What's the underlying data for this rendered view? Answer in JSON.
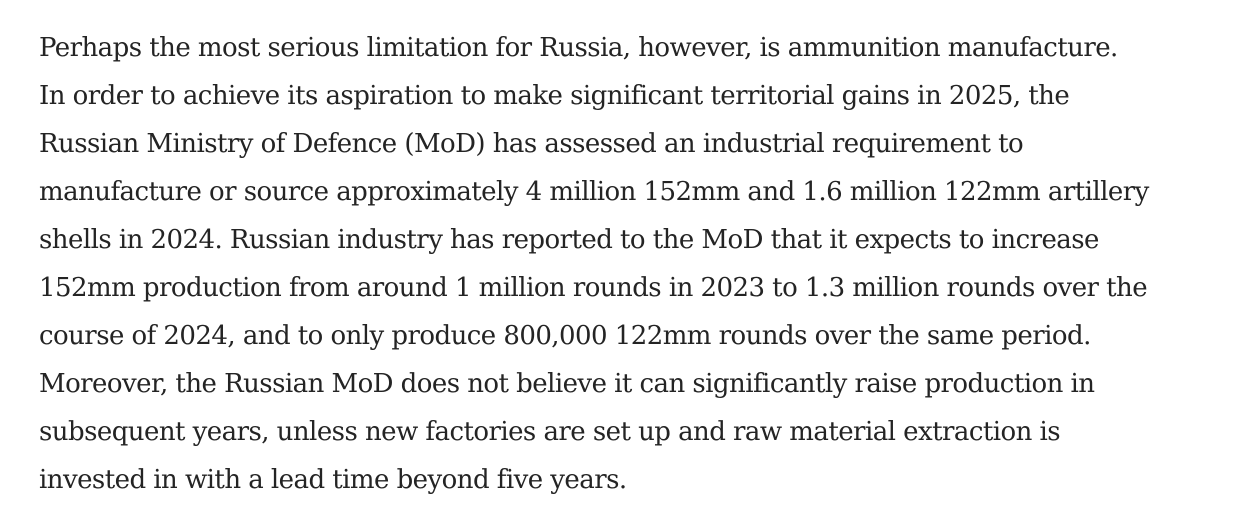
{
  "article": {
    "paragraph_lines": [
      "Perhaps the most serious limitation for Russia, however, is ammunition manufacture.",
      "In order to achieve its aspiration to make significant territorial gains in 2025, the",
      "Russian Ministry of Defence (MoD) has assessed an industrial requirement to",
      "manufacture or source approximately 4 million 152mm and 1.6 million 122mm artillery",
      "shells in 2024. Russian industry has reported to the MoD that it expects to increase",
      "152mm production from around 1 million rounds in 2023 to 1.3 million rounds over the",
      "course of 2024, and to only produce 800,000 122mm rounds over the same period.",
      "Moreover, the Russian MoD does not believe it can significantly raise production in",
      "subsequent years, unless new factories are set up and raw material extraction is",
      "invested in with a lead time beyond five years."
    ]
  },
  "colors": {
    "text": "#242424",
    "background": "#ffffff"
  }
}
